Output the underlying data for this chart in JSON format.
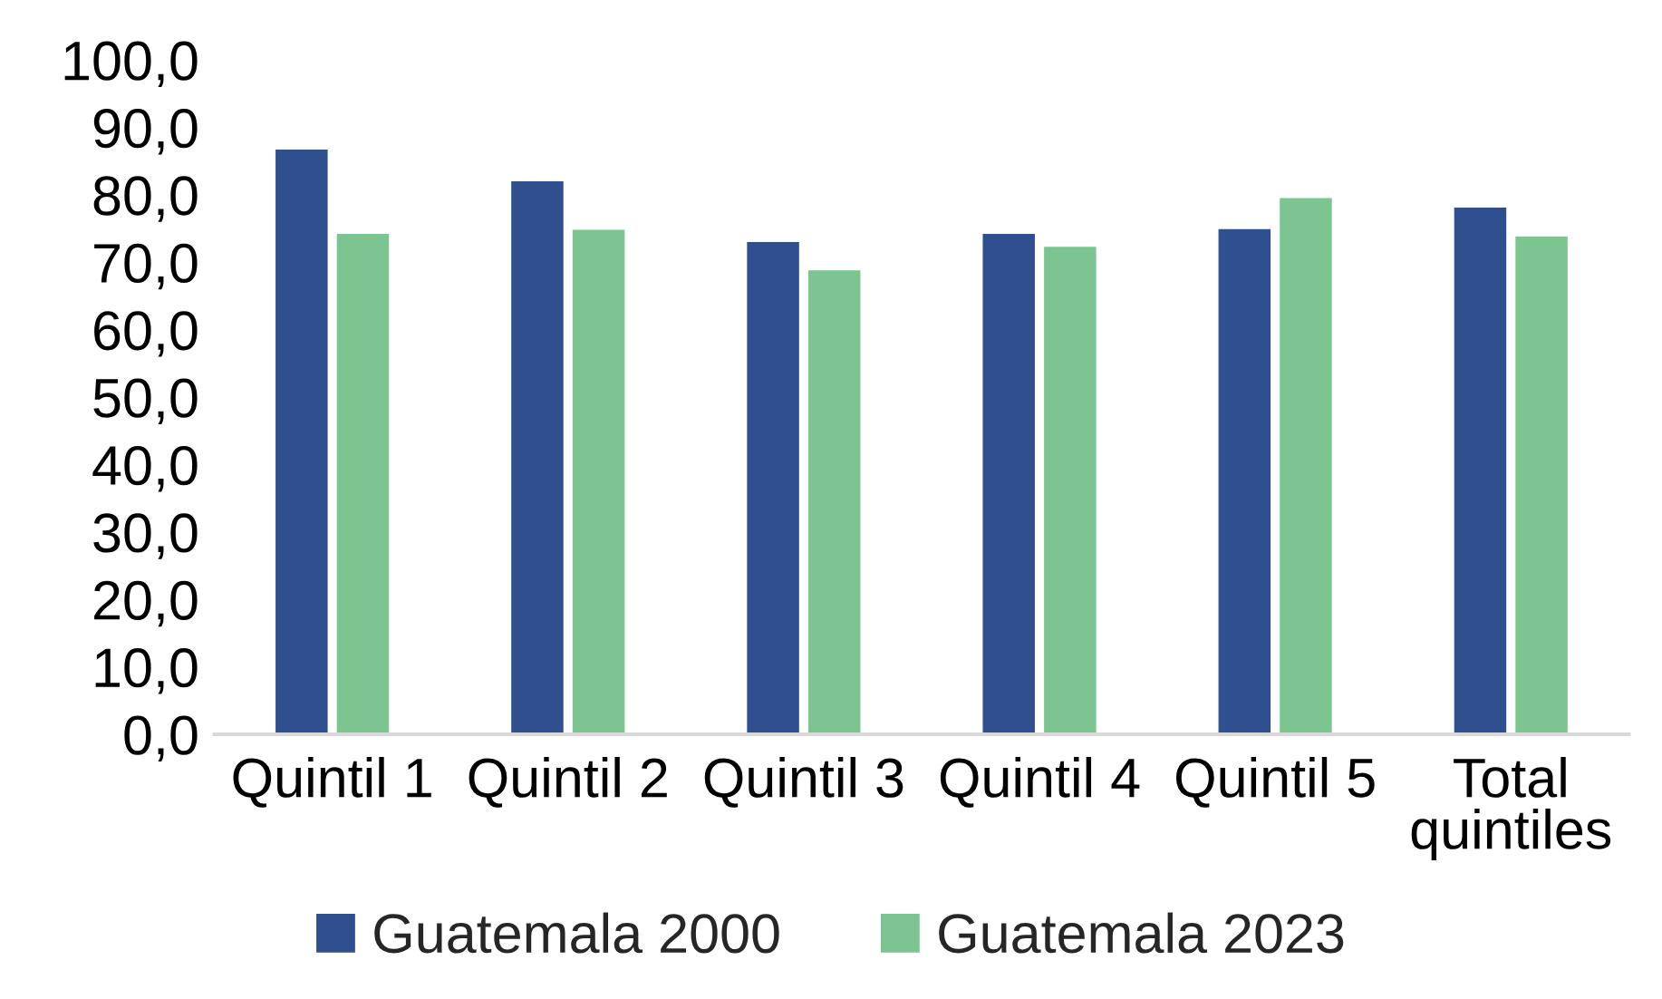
{
  "chart_data": {
    "type": "bar",
    "categories": [
      "Quintil 1",
      "Quintil 2",
      "Quintil 3",
      "Quintil 4",
      "Quintil 5",
      "Total quintiles"
    ],
    "series": [
      {
        "name": "Guatemala 2000",
        "color": "#2f4f8f",
        "values": [
          86.7,
          82.0,
          73.0,
          74.2,
          74.9,
          78.1
        ]
      },
      {
        "name": "Guatemala 2023",
        "color": "#7cc490",
        "values": [
          74.2,
          74.8,
          68.8,
          72.3,
          79.5,
          73.8
        ]
      }
    ],
    "ylim": [
      0,
      100
    ],
    "yticks": [
      {
        "value": 0,
        "label": "0,0"
      },
      {
        "value": 10,
        "label": "10,0"
      },
      {
        "value": 20,
        "label": "20,0"
      },
      {
        "value": 30,
        "label": "30,0"
      },
      {
        "value": 40,
        "label": "40,0"
      },
      {
        "value": 50,
        "label": "50,0"
      },
      {
        "value": 60,
        "label": "60,0"
      },
      {
        "value": 70,
        "label": "70,0"
      },
      {
        "value": 80,
        "label": "80,0"
      },
      {
        "value": 90,
        "label": "90,0"
      },
      {
        "value": 100,
        "label": "100,0"
      }
    ],
    "grid": false,
    "legend": "bottom"
  }
}
